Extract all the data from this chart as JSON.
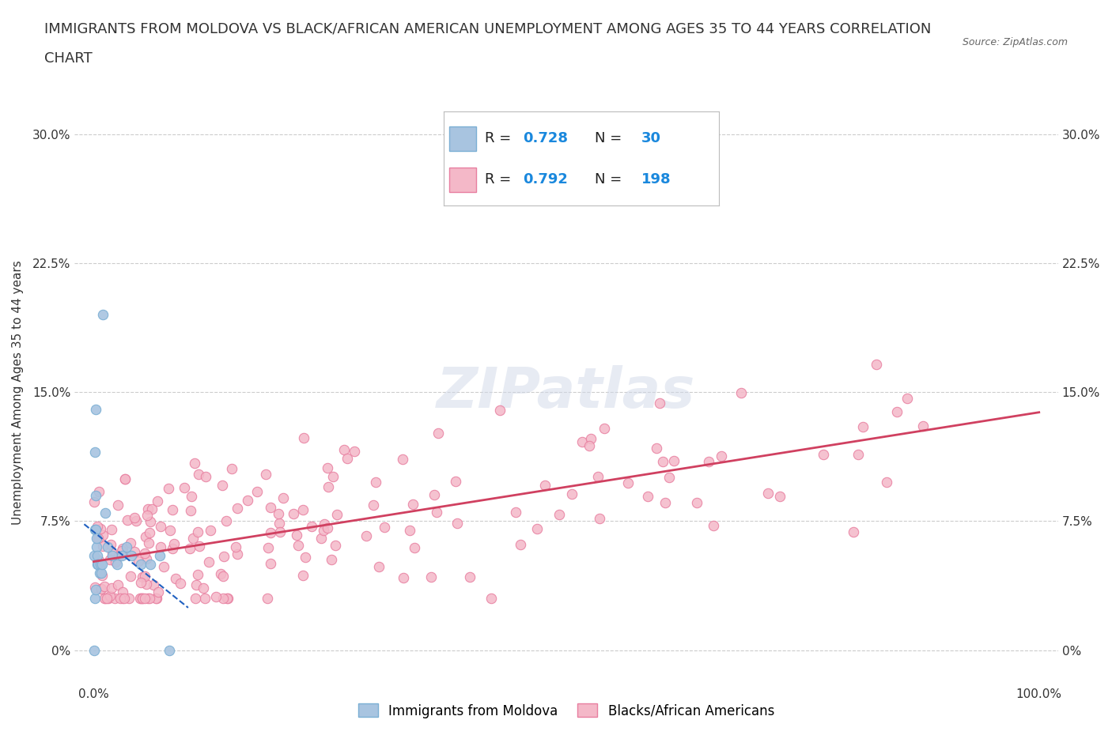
{
  "title_line1": "IMMIGRANTS FROM MOLDOVA VS BLACK/AFRICAN AMERICAN UNEMPLOYMENT AMONG AGES 35 TO 44 YEARS CORRELATION",
  "title_line2": "CHART",
  "source": "Source: ZipAtlas.com",
  "ylabel": "Unemployment Among Ages 35 to 44 years",
  "moldova_color": "#a8c4e0",
  "moldova_edge": "#7bafd4",
  "african_color": "#f4b8c8",
  "african_edge": "#e87fa0",
  "regression_moldova_color": "#2060c0",
  "regression_african_color": "#d04060",
  "legend_label_moldova": "Immigrants from Moldova",
  "legend_label_african": "Blacks/African Americans",
  "watermark_zip": "ZIP",
  "watermark_atlas": "atlas",
  "moldova_scatter_x": [
    0.05,
    0.08,
    0.1,
    0.12,
    0.15,
    0.18,
    0.2,
    0.22,
    0.25,
    0.28,
    0.3,
    0.35,
    0.4,
    0.5,
    0.6,
    0.7,
    0.8,
    0.9,
    1.0,
    1.2,
    1.5,
    2.0,
    2.5,
    3.0,
    3.5,
    4.0,
    5.0,
    6.0,
    7.0,
    8.0
  ],
  "moldova_scatter_y": [
    5.5,
    0.0,
    7.0,
    3.0,
    11.5,
    14.0,
    9.0,
    3.5,
    7.0,
    6.0,
    6.5,
    5.5,
    5.0,
    5.0,
    4.5,
    5.0,
    4.5,
    5.0,
    19.5,
    8.0,
    6.0,
    5.5,
    5.0,
    5.5,
    6.0,
    5.5,
    5.0,
    5.0,
    5.5,
    0.0
  ],
  "yticks": [
    0,
    7.5,
    15,
    22.5,
    30
  ],
  "ytick_labels": [
    "0%",
    "7.5%",
    "15.0%",
    "22.5%",
    "30.0%"
  ],
  "grid_color": "#cccccc",
  "bg_color": "#ffffff",
  "title_fontsize": 13,
  "axis_label_fontsize": 11,
  "tick_fontsize": 11,
  "legend_fontsize": 13,
  "blue_text_color": "#1a88dd",
  "dark_text_color": "#222222"
}
